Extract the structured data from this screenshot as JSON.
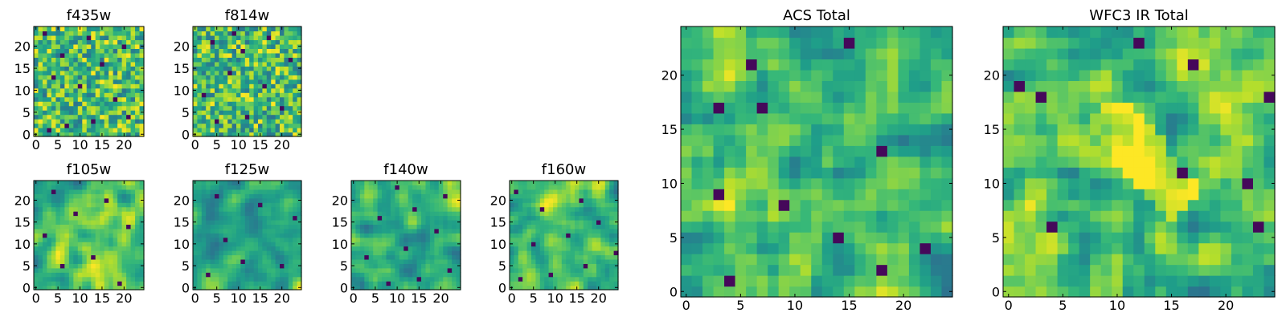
{
  "chart_data": [
    {
      "type": "heatmap",
      "title": "f435w",
      "grid_size": [
        25,
        25
      ],
      "xlim": [
        0,
        24
      ],
      "ylim": [
        0,
        24
      ],
      "x_ticks": [
        0,
        5,
        10,
        15,
        20
      ],
      "y_ticks": [
        0,
        5,
        10,
        15,
        20
      ],
      "colormap": "viridis",
      "texture": "fine noise",
      "dark_pixels": [
        [
          3,
          1
        ],
        [
          7,
          2
        ],
        [
          13,
          3
        ],
        [
          21,
          4
        ],
        [
          18,
          8
        ],
        [
          10,
          11
        ],
        [
          4,
          13
        ],
        [
          15,
          16
        ],
        [
          6,
          18
        ],
        [
          20,
          20
        ],
        [
          12,
          22
        ],
        [
          2,
          23
        ]
      ]
    },
    {
      "type": "heatmap",
      "title": "f814w",
      "grid_size": [
        25,
        25
      ],
      "xlim": [
        0,
        24
      ],
      "ylim": [
        0,
        24
      ],
      "x_ticks": [
        0,
        5,
        10,
        15,
        20
      ],
      "y_ticks": [
        0,
        5,
        10,
        15,
        20
      ],
      "colormap": "viridis",
      "texture": "fine noise",
      "dark_pixels": [
        [
          5,
          3
        ],
        [
          12,
          4
        ],
        [
          20,
          6
        ],
        [
          2,
          9
        ],
        [
          16,
          11
        ],
        [
          8,
          14
        ],
        [
          22,
          17
        ],
        [
          11,
          19
        ],
        [
          4,
          21
        ],
        [
          17,
          22
        ],
        [
          9,
          23
        ]
      ]
    },
    {
      "type": "heatmap",
      "title": "f105w",
      "grid_size": [
        25,
        25
      ],
      "xlim": [
        0,
        24
      ],
      "ylim": [
        0,
        24
      ],
      "x_ticks": [
        0,
        5,
        10,
        15,
        20
      ],
      "y_ticks": [
        0,
        5,
        10,
        15,
        20
      ],
      "colormap": "viridis",
      "texture": "smoothed noise",
      "dark_pixels": [
        [
          19,
          1
        ],
        [
          6,
          5
        ],
        [
          13,
          7
        ],
        [
          2,
          12
        ],
        [
          21,
          14
        ],
        [
          9,
          17
        ],
        [
          16,
          20
        ],
        [
          4,
          22
        ]
      ]
    },
    {
      "type": "heatmap",
      "title": "f125w",
      "grid_size": [
        25,
        25
      ],
      "xlim": [
        0,
        24
      ],
      "ylim": [
        0,
        24
      ],
      "x_ticks": [
        0,
        5,
        10,
        15,
        20
      ],
      "y_ticks": [
        0,
        5,
        10,
        15,
        20
      ],
      "colormap": "viridis",
      "texture": "smoothed noise",
      "dark_pixels": [
        [
          3,
          3
        ],
        [
          20,
          5
        ],
        [
          11,
          6
        ],
        [
          7,
          11
        ],
        [
          23,
          16
        ],
        [
          15,
          19
        ],
        [
          5,
          21
        ]
      ]
    },
    {
      "type": "heatmap",
      "title": "f140w",
      "grid_size": [
        25,
        25
      ],
      "xlim": [
        0,
        24
      ],
      "ylim": [
        0,
        24
      ],
      "x_ticks": [
        0,
        5,
        10,
        15,
        20
      ],
      "y_ticks": [
        0,
        5,
        10,
        15,
        20
      ],
      "colormap": "viridis",
      "texture": "smoothed noise",
      "dark_pixels": [
        [
          8,
          1
        ],
        [
          15,
          2
        ],
        [
          22,
          4
        ],
        [
          3,
          7
        ],
        [
          12,
          9
        ],
        [
          19,
          13
        ],
        [
          6,
          16
        ],
        [
          14,
          18
        ],
        [
          21,
          21
        ],
        [
          10,
          23
        ]
      ]
    },
    {
      "type": "heatmap",
      "title": "f160w",
      "grid_size": [
        25,
        25
      ],
      "xlim": [
        0,
        24
      ],
      "ylim": [
        0,
        24
      ],
      "x_ticks": [
        0,
        5,
        10,
        15,
        20
      ],
      "y_ticks": [
        0,
        5,
        10,
        15,
        20
      ],
      "colormap": "viridis",
      "texture": "smoothed noise",
      "dark_pixels": [
        [
          2,
          2
        ],
        [
          9,
          3
        ],
        [
          17,
          5
        ],
        [
          24,
          8
        ],
        [
          5,
          10
        ],
        [
          13,
          12
        ],
        [
          20,
          15
        ],
        [
          7,
          18
        ],
        [
          16,
          20
        ],
        [
          1,
          22
        ]
      ]
    },
    {
      "type": "heatmap",
      "title": "ACS Total",
      "grid_size": [
        25,
        25
      ],
      "xlim": [
        0,
        24
      ],
      "ylim": [
        0,
        24
      ],
      "x_ticks": [
        0,
        5,
        10,
        15,
        20
      ],
      "y_ticks": [
        0,
        5,
        10,
        15,
        20
      ],
      "colormap": "viridis",
      "texture": "coarse noise",
      "dark_pixels": [
        [
          4,
          1
        ],
        [
          18,
          2
        ],
        [
          22,
          4
        ],
        [
          14,
          5
        ],
        [
          9,
          8
        ],
        [
          3,
          9
        ],
        [
          18,
          13
        ],
        [
          7,
          17
        ],
        [
          3,
          17
        ],
        [
          15,
          23
        ],
        [
          6,
          21
        ]
      ]
    },
    {
      "type": "heatmap",
      "title": "WFC3 IR Total",
      "grid_size": [
        25,
        25
      ],
      "xlim": [
        0,
        24
      ],
      "ylim": [
        0,
        24
      ],
      "x_ticks": [
        0,
        5,
        10,
        15,
        20
      ],
      "y_ticks": [
        0,
        5,
        10,
        15,
        20
      ],
      "colormap": "viridis",
      "texture": "coarse noise with bright central band",
      "dark_pixels": [
        [
          4,
          6
        ],
        [
          23,
          6
        ],
        [
          16,
          11
        ],
        [
          22,
          10
        ],
        [
          1,
          19
        ],
        [
          17,
          21
        ],
        [
          12,
          23
        ],
        [
          24,
          18
        ],
        [
          3,
          18
        ]
      ]
    }
  ]
}
